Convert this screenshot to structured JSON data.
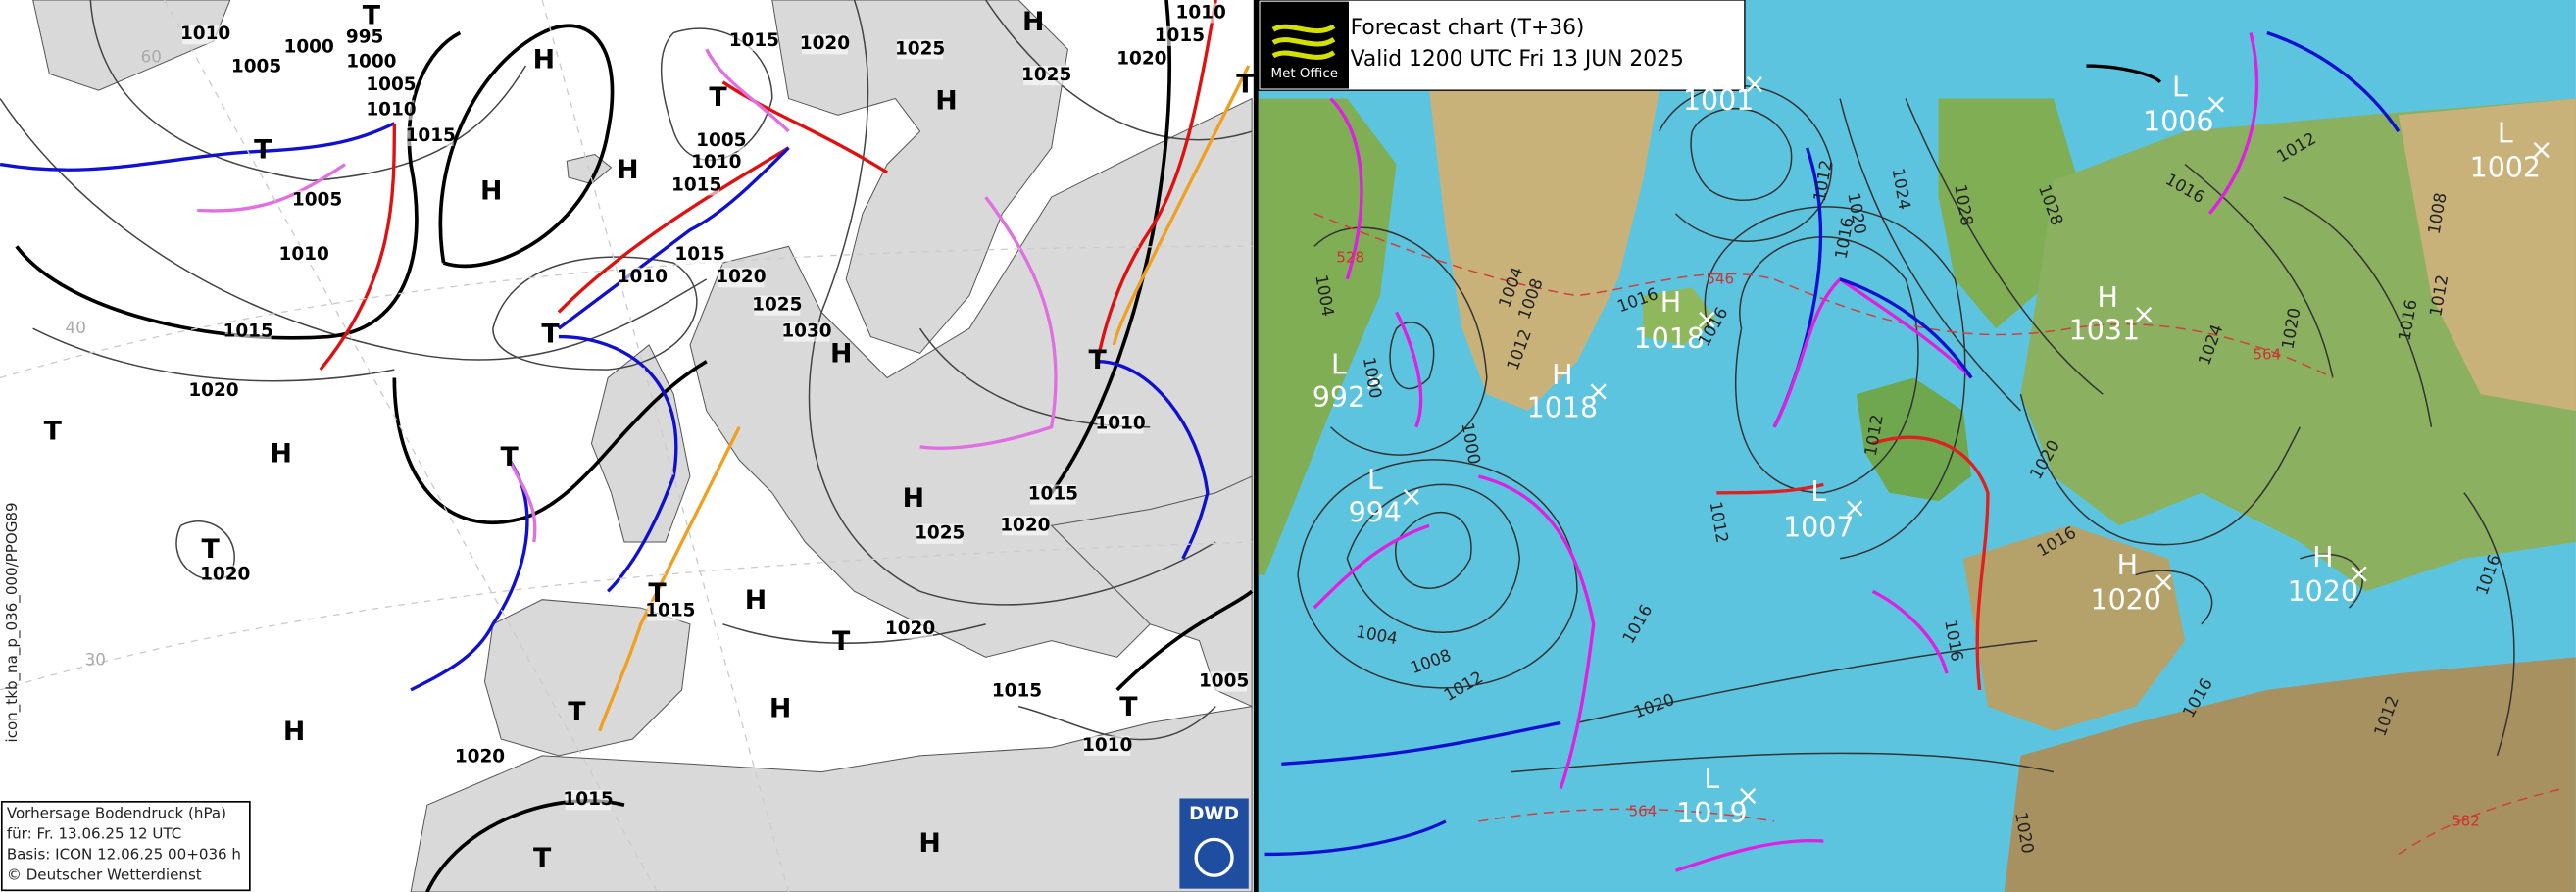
{
  "dwd": {
    "isobar_labels": [
      1010,
      995,
      1000,
      1000,
      1005,
      1005,
      1010,
      1015,
      1005,
      1010,
      1015,
      1020,
      1020,
      1015,
      1020,
      1025,
      1025,
      1020,
      1015,
      1010,
      1005,
      1010,
      1015,
      1015,
      1010,
      1020,
      1025,
      1030,
      1010,
      1015,
      1025,
      1020,
      1015,
      1020,
      1015,
      1010,
      1005,
      1020,
      1015
    ],
    "systems": [
      "T",
      "H",
      "H",
      "H",
      "T",
      "T",
      "H",
      "H",
      "T",
      "T",
      "H",
      "T",
      "T",
      "H",
      "T",
      "T",
      "H",
      "T",
      "H",
      "T",
      "T",
      "H",
      "H",
      "T",
      "T",
      "H"
    ],
    "grid_labels": [
      "60",
      "40",
      "30"
    ],
    "side_text": "icon_tkb_na_p_036_000/PPOG89",
    "info": [
      "Vorhersage Bodendruck (hPa)",
      "für:  Fr. 13.06.25  12 UTC",
      "Basis: ICON  12.06.25 00+036 h",
      "© Deutscher Wetterdienst"
    ],
    "logo": "DWD"
  },
  "metoffice": {
    "title": "Forecast chart (T+36)",
    "valid": "Valid 1200 UTC Fri 13 JUN 2025",
    "logo": "Met Office",
    "systems": [
      {
        "kind": "L",
        "pressure": 1001
      },
      {
        "kind": "L",
        "pressure": 1006
      },
      {
        "kind": "L",
        "pressure": 1002
      },
      {
        "kind": "H",
        "pressure": 1031
      },
      {
        "kind": "H",
        "pressure": 1018
      },
      {
        "kind": "H",
        "pressure": 1018
      },
      {
        "kind": "L",
        "pressure": 992
      },
      {
        "kind": "L",
        "pressure": 994
      },
      {
        "kind": "L",
        "pressure": 1007
      },
      {
        "kind": "H",
        "pressure": 1020
      },
      {
        "kind": "H",
        "pressure": 1020
      },
      {
        "kind": "L",
        "pressure": 1019
      }
    ],
    "isobar_labels": [
      1004,
      1000,
      1004,
      1008,
      1012,
      1016,
      1016,
      1000,
      1004,
      1008,
      1012,
      1016,
      1020,
      1020,
      1024,
      1028,
      1028,
      1016,
      1012,
      1008,
      1012,
      1016,
      1020,
      1024,
      1016,
      1012,
      1012,
      1012,
      1016,
      1020,
      1016,
      1016,
      1016,
      1012,
      1020
    ],
    "thickness_labels": [
      528,
      546,
      564,
      564,
      582
    ]
  }
}
